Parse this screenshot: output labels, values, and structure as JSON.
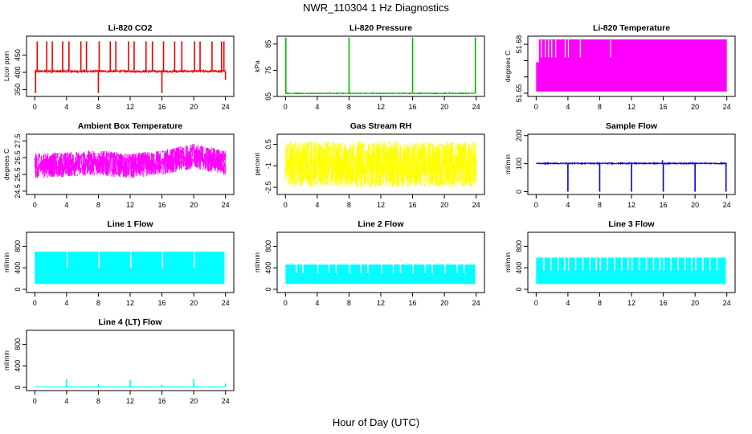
{
  "title": "NWR_110304  1 Hz Diagnostics",
  "xlabel": "Hour of Day (UTC)",
  "colors": {
    "red": "#ee0000",
    "green": "#00bb00",
    "magenta": "#ff00ff",
    "yellow": "#ffff00",
    "blue": "#0000dd",
    "cyan": "#00ffff"
  },
  "chart_data": [
    {
      "type": "line",
      "title": "Li-820 CO2",
      "ylabel": "Licor ppm",
      "xlim": [
        0,
        24
      ],
      "xticks": [
        0,
        4,
        8,
        12,
        16,
        20,
        24
      ],
      "ylim": [
        330,
        505
      ],
      "yticks": [
        350,
        400,
        450
      ],
      "color": "red",
      "pattern": "spikes",
      "series": [
        {
          "x": [
            0,
            24
          ],
          "y": [
            403,
            403
          ]
        }
      ],
      "baseline": 403,
      "noise": 3,
      "spikes_up": [
        0.3,
        1.5,
        2.2,
        3.5,
        4.3,
        5.8,
        6.5,
        8.1,
        9.5,
        10.2,
        11.8,
        12.5,
        14.0,
        14.8,
        16.2,
        17.6,
        18.5,
        20.1,
        20.8,
        22.3,
        23.5,
        23.8
      ],
      "spike_up_value": 490,
      "spikes_down": [
        0.1,
        8.0,
        16.0
      ],
      "spike_down_value": 340,
      "end_drop": 378
    },
    {
      "type": "line",
      "title": "Li-820 Pressure",
      "ylabel": "kPa",
      "xlim": [
        0,
        24
      ],
      "xticks": [
        0,
        4,
        8,
        12,
        16,
        20,
        24
      ],
      "ylim": [
        65,
        88
      ],
      "yticks": [
        65,
        75,
        85
      ],
      "color": "green",
      "pattern": "spikes",
      "series": [
        {
          "x": [
            0,
            24
          ],
          "y": [
            66.2,
            66.2
          ]
        }
      ],
      "baseline": 66.2,
      "noise": 0.15,
      "spikes_up": [
        0.05,
        8.0,
        16.0,
        23.9
      ],
      "spike_up_value": 87.5,
      "spikes_down": [],
      "spike_down_value": 65
    },
    {
      "type": "line",
      "title": "Li-820 Temperature",
      "ylabel": "degrees C",
      "xlim": [
        0,
        24
      ],
      "xticks": [
        0,
        4,
        8,
        12,
        16,
        20,
        24
      ],
      "ylim": [
        51.648,
        51.685
      ],
      "yticks": [
        51.65,
        51.66,
        51.67,
        51.68
      ],
      "yticklabels": [
        "51.65",
        "",
        "",
        "51.68"
      ],
      "color": "magenta",
      "pattern": "quantized",
      "band": [
        51.651,
        51.683
      ],
      "gaps": [
        0.6,
        1.1,
        1.5,
        1.9,
        2.4,
        3.6,
        4.0,
        5.5,
        9.3
      ],
      "gap_floor": 51.672
    },
    {
      "type": "line",
      "title": "Ambient Box Temperature",
      "ylabel": "degrees C",
      "xlim": [
        0,
        24
      ],
      "xticks": [
        0,
        4,
        8,
        12,
        16,
        20,
        24
      ],
      "ylim": [
        24.3,
        27.9
      ],
      "yticks": [
        24.5,
        25.5,
        26.5,
        27.5
      ],
      "color": "magenta",
      "pattern": "noiseband",
      "center": [
        [
          0,
          26.0
        ],
        [
          4,
          26.1
        ],
        [
          8,
          26.2
        ],
        [
          12,
          26.0
        ],
        [
          16,
          26.2
        ],
        [
          19,
          26.5
        ],
        [
          20,
          26.6
        ],
        [
          24,
          26.2
        ]
      ],
      "half_width": 0.75
    },
    {
      "type": "line",
      "title": "Gas Stream RH",
      "ylabel": "percent",
      "xlim": [
        0,
        24
      ],
      "xticks": [
        0,
        4,
        8,
        12,
        16,
        20,
        24
      ],
      "ylim": [
        -3.0,
        1.2
      ],
      "yticks": [
        -2.5,
        -1.0,
        0.5
      ],
      "color": "yellow",
      "pattern": "noiseband",
      "center": [
        [
          0,
          -0.9
        ],
        [
          12,
          -0.9
        ],
        [
          24,
          -0.9
        ]
      ],
      "half_width": 1.6
    },
    {
      "type": "line",
      "title": "Sample Flow",
      "ylabel": "ml/min",
      "xlim": [
        0,
        24
      ],
      "xticks": [
        0,
        4,
        8,
        12,
        16,
        20,
        24
      ],
      "ylim": [
        -10,
        205
      ],
      "yticks": [
        0,
        100,
        200
      ],
      "color": "blue",
      "pattern": "spikes",
      "series": [
        {
          "x": [
            0,
            24
          ],
          "y": [
            101,
            101
          ]
        }
      ],
      "baseline": 101,
      "noise": 2,
      "spikes_up": [
        15.9
      ],
      "spike_up_value": 112,
      "spikes_down": [
        4.0,
        8.0,
        12.0,
        16.0,
        20.0,
        23.9
      ],
      "spike_down_value": 0
    },
    {
      "type": "line",
      "title": "Line 1 Flow",
      "ylabel": "ml/min",
      "xlim": [
        0,
        24
      ],
      "xticks": [
        0,
        4,
        8,
        12,
        16,
        20,
        24
      ],
      "ylim": [
        -60,
        1060
      ],
      "yticks": [
        0,
        400,
        800
      ],
      "color": "cyan",
      "pattern": "blocks",
      "low": 100,
      "high": 700,
      "gaps": [
        4.0,
        8.0,
        12.0,
        16.0,
        20.0
      ],
      "gap_width": 0.12,
      "gap_value": 400,
      "x_end": 23.8
    },
    {
      "type": "line",
      "title": "Line 2 Flow",
      "ylabel": "ml/min",
      "xlim": [
        0,
        24
      ],
      "xticks": [
        0,
        4,
        8,
        12,
        16,
        20,
        24
      ],
      "ylim": [
        -60,
        1060
      ],
      "yticks": [
        0,
        400,
        800
      ],
      "color": "cyan",
      "pattern": "blocks",
      "low": 100,
      "high": 460,
      "gaps": [
        1.3,
        2.1,
        4.0,
        5.4,
        6.3,
        8.0,
        9.4,
        10.3,
        12.0,
        13.5,
        14.4,
        16.0,
        17.5,
        18.4,
        20.0,
        21.5,
        22.4
      ],
      "gap_width": 0.08,
      "gap_value": 300,
      "x_end": 23.8
    },
    {
      "type": "line",
      "title": "Line 3 Flow",
      "ylabel": "ml/min",
      "xlim": [
        0,
        24
      ],
      "xticks": [
        0,
        4,
        8,
        12,
        16,
        20,
        24
      ],
      "ylim": [
        -60,
        1060
      ],
      "yticks": [
        0,
        400,
        800
      ],
      "color": "cyan",
      "pattern": "blocks",
      "low": 100,
      "high": 590,
      "gaps": [
        0.9,
        1.8,
        2.7,
        3.5,
        4.0,
        4.9,
        5.8,
        6.7,
        7.5,
        8.0,
        8.9,
        9.8,
        10.7,
        11.5,
        12.0,
        12.9,
        13.8,
        14.7,
        15.5,
        16.0,
        16.9,
        17.8,
        18.7,
        19.5,
        20.0,
        20.9,
        21.8,
        22.7
      ],
      "gap_width": 0.06,
      "gap_value": 350,
      "x_end": 23.8
    },
    {
      "type": "line",
      "title": "Line 4 (LT) Flow",
      "ylabel": "ml/min",
      "xlim": [
        0,
        24
      ],
      "xticks": [
        0,
        4,
        8,
        12,
        16,
        20,
        24
      ],
      "ylim": [
        -60,
        1060
      ],
      "yticks": [
        0,
        400,
        800
      ],
      "color": "cyan",
      "pattern": "spikes",
      "series": [
        {
          "x": [
            0,
            24
          ],
          "y": [
            10,
            10
          ]
        }
      ],
      "baseline": 10,
      "noise": 3,
      "spikes_up": [
        4.0,
        8.0,
        12.0,
        16.0,
        20.0,
        24.0
      ],
      "spike_up_values": [
        150,
        60,
        140,
        50,
        160,
        70
      ],
      "spikes_down": [],
      "spike_down_value": 0
    }
  ]
}
